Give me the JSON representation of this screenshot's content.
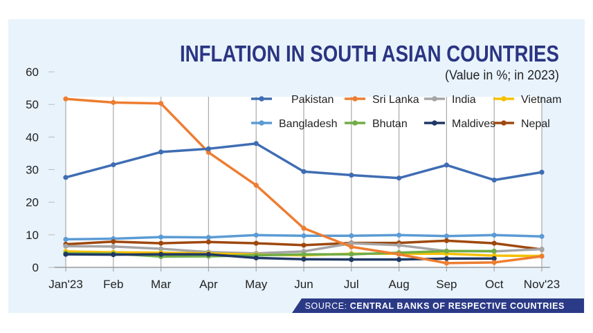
{
  "chart_data": {
    "type": "line",
    "title": "INFLATION IN SOUTH ASIAN COUNTRIES",
    "subtitle": "(Value in %; in 2023)",
    "source_label": "SOURCE:",
    "source_text": "CENTRAL BANKS OF RESPECTIVE COUNTRIES",
    "xlabel": "",
    "ylabel": "",
    "categories": [
      "Jan'23",
      "Feb",
      "Mar",
      "Apr",
      "May",
      "Jun",
      "Jul",
      "Aug",
      "Sep",
      "Oct",
      "Nov'23"
    ],
    "ylim": [
      0,
      60
    ],
    "yticks": [
      "0",
      "10",
      "20",
      "30",
      "40",
      "50",
      "60"
    ],
    "grid": "vertical",
    "legend_position": "top-right",
    "series": [
      {
        "name": "Pakistan",
        "color": "#3f6db3",
        "values": [
          27.6,
          31.5,
          35.4,
          36.4,
          38.0,
          29.4,
          28.3,
          27.4,
          31.4,
          26.8,
          29.2
        ]
      },
      {
        "name": "Sri Lanka",
        "color": "#ed7d31",
        "values": [
          51.7,
          50.6,
          50.3,
          35.3,
          25.2,
          12.0,
          6.3,
          4.0,
          1.3,
          1.5,
          3.4
        ]
      },
      {
        "name": "India",
        "color": "#a5a5a5",
        "values": [
          6.5,
          6.4,
          5.7,
          4.7,
          4.3,
          4.9,
          7.4,
          6.8,
          5.0,
          4.9,
          5.6
        ]
      },
      {
        "name": "Vietnam",
        "color": "#f5c000",
        "values": [
          4.9,
          4.6,
          4.5,
          4.3,
          3.9,
          3.7,
          4.2,
          4.2,
          4.2,
          3.6,
          3.5
        ]
      },
      {
        "name": "Bangladesh",
        "color": "#5b9bd5",
        "values": [
          8.6,
          8.8,
          9.3,
          9.2,
          9.9,
          9.7,
          9.7,
          9.9,
          9.6,
          9.9,
          9.5
        ]
      },
      {
        "name": "Bhutan",
        "color": "#70ad47",
        "values": [
          4.3,
          4.2,
          3.3,
          3.4,
          3.7,
          4.0,
          4.0,
          4.5,
          5.0,
          5.0,
          null
        ]
      },
      {
        "name": "Maldives",
        "color": "#1f3864",
        "values": [
          4.0,
          3.9,
          4.0,
          4.0,
          2.9,
          2.5,
          2.4,
          2.4,
          2.7,
          2.7,
          null
        ]
      },
      {
        "name": "Nepal",
        "color": "#9e480e",
        "values": [
          7.1,
          7.9,
          7.4,
          7.8,
          7.4,
          6.8,
          7.5,
          7.5,
          8.2,
          7.4,
          5.5
        ]
      }
    ]
  }
}
